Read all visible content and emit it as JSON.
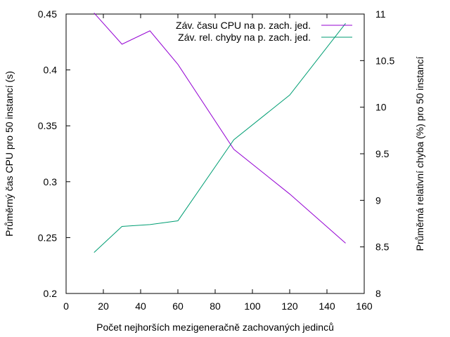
{
  "chart_data": {
    "type": "line",
    "xlabel": "Počet nejhorších mezigeneračně zachovaných jedinců",
    "ylabel": "Průměrný čas CPU pro 50 instancí (s)",
    "y2label": "Průměrná relativní chyba (%) pro 50 instancí",
    "xlim": [
      0,
      160
    ],
    "ylim": [
      0.2,
      0.45
    ],
    "y2lim": [
      8,
      11
    ],
    "xticks": [
      0,
      20,
      40,
      60,
      80,
      100,
      120,
      140,
      160
    ],
    "yticks": [
      0.2,
      0.25,
      0.3,
      0.35,
      0.4,
      0.45
    ],
    "y2ticks": [
      8,
      8.5,
      9,
      9.5,
      10,
      10.5,
      11
    ],
    "x_tick_labels": [
      "0",
      "20",
      "40",
      "60",
      "80",
      "100",
      "120",
      "140",
      "160"
    ],
    "y_tick_labels": [
      "0.2",
      "0.25",
      "0.3",
      "0.35",
      "0.4",
      "0.45"
    ],
    "y2_tick_labels": [
      "8",
      "8.5",
      "9",
      "9.5",
      "10",
      "10.5",
      "11"
    ],
    "grid": false,
    "legend_position": "top-right",
    "series": [
      {
        "name": "Záv. času CPU na p. zach. jed.",
        "axis": "left",
        "color": "#9400d3",
        "x": [
          15,
          30,
          45,
          60,
          90,
          120,
          150
        ],
        "y": [
          0.451,
          0.423,
          0.435,
          0.405,
          0.329,
          0.289,
          0.245
        ]
      },
      {
        "name": "Záv. rel. chyby na p. zach. jed.",
        "axis": "right",
        "color": "#009e73",
        "x": [
          15,
          30,
          45,
          60,
          90,
          120,
          150
        ],
        "y": [
          8.44,
          8.72,
          8.74,
          8.78,
          9.65,
          10.13,
          10.9
        ]
      }
    ]
  }
}
